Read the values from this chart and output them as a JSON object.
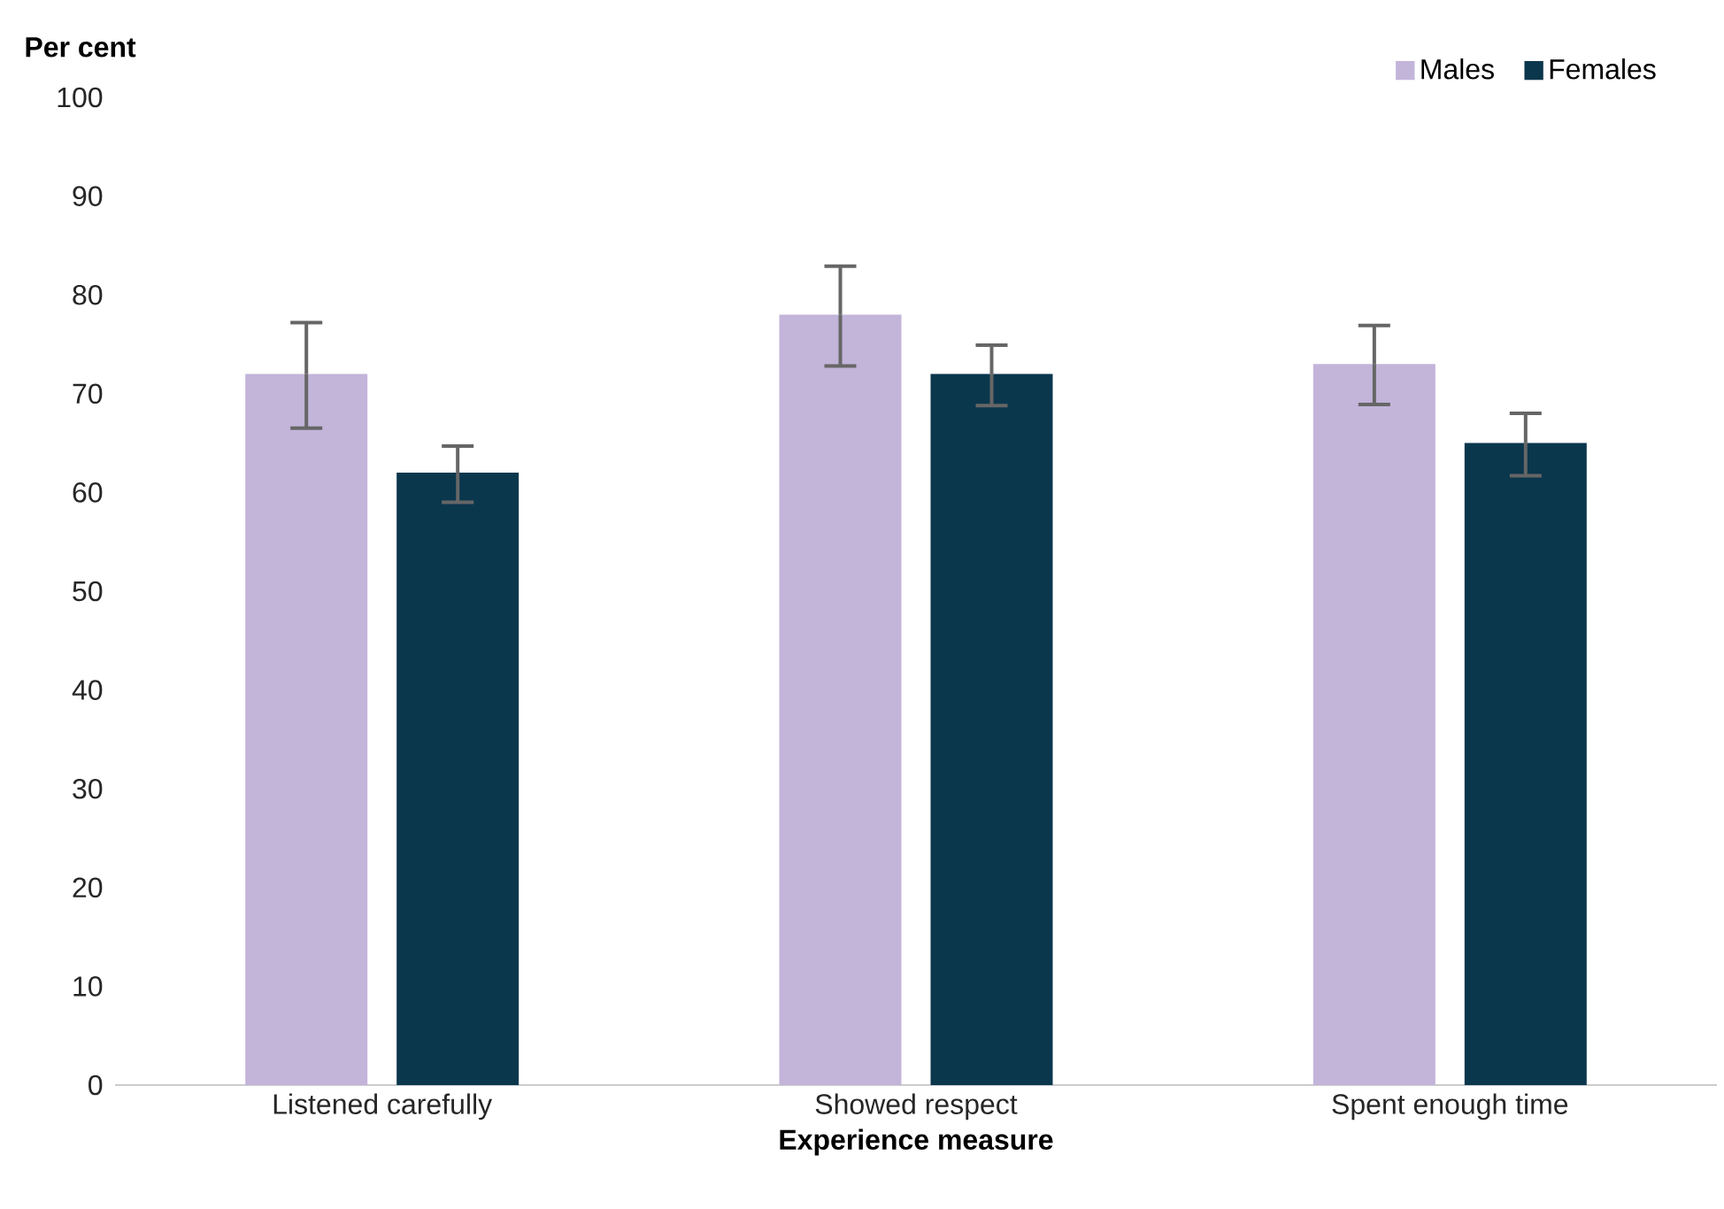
{
  "chart_data": {
    "type": "bar",
    "xlabel": "Experience measure",
    "ylabel": "Per cent",
    "categories": [
      "Listened carefully",
      "Showed respect",
      "Spent enough time"
    ],
    "series": [
      {
        "name": "Males",
        "color": "#c3b4da",
        "values": [
          72,
          78,
          73
        ],
        "errors": [
          [
            66.5,
            77.2
          ],
          [
            72.8,
            82.9
          ],
          [
            68.9,
            76.9
          ]
        ]
      },
      {
        "name": "Females",
        "color": "#0b374d",
        "values": [
          62,
          72,
          65
        ],
        "errors": [
          [
            59.0,
            64.7
          ],
          [
            68.8,
            74.9
          ],
          [
            61.7,
            68.0
          ]
        ]
      }
    ],
    "ylim": [
      0,
      100
    ],
    "yticks": [
      0,
      10,
      20,
      30,
      40,
      50,
      60,
      70,
      80,
      90,
      100
    ],
    "legend": "top right",
    "grid": false
  }
}
